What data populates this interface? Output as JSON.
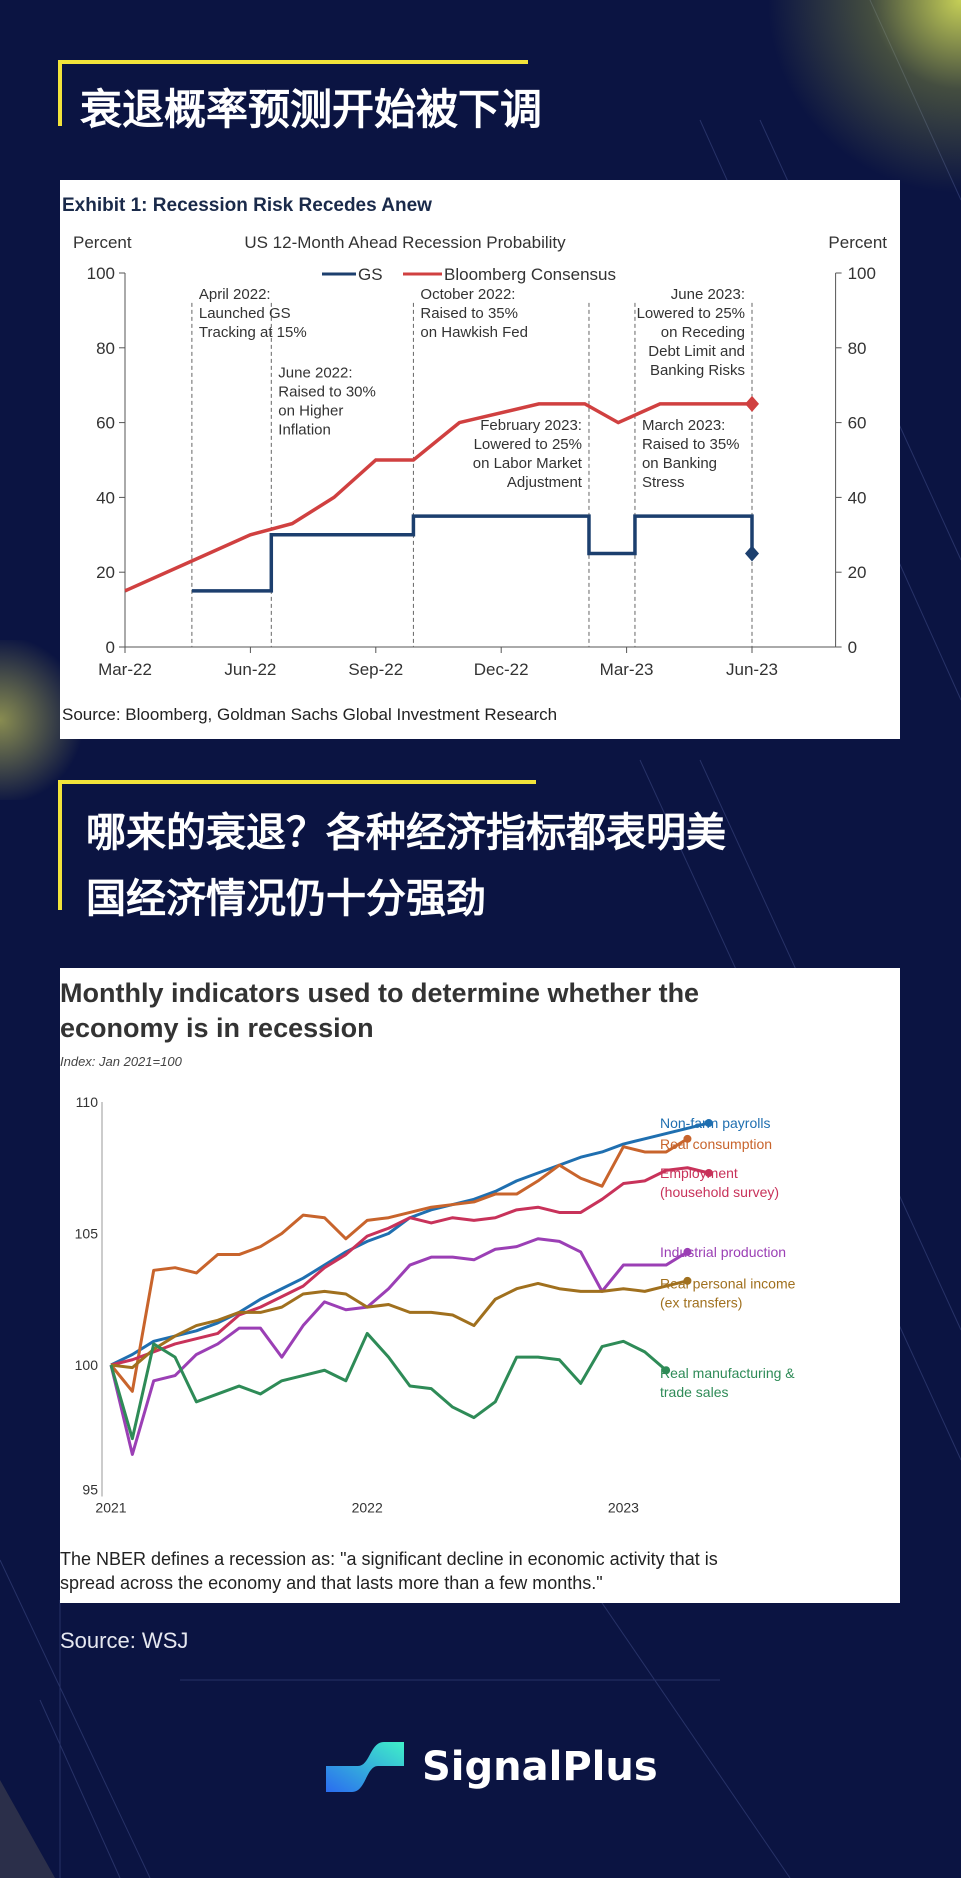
{
  "section1_title": "衰退概率预测开始被下调",
  "section2_title_line1": "哪来的衰退？各种经济指标都表明美",
  "section2_title_line2": "国经济情况仍十分强劲",
  "source2": "Source: WSJ",
  "brand": "SignalPlus",
  "colors": {
    "bg": "#0b1442",
    "accent": "#f2e33a",
    "gs": "#1c3f6e",
    "bloomberg": "#d04040"
  },
  "chart_data": [
    {
      "type": "line",
      "title": "Exhibit 1: Recession Risk Recedes Anew",
      "subtitle": "US 12-Month Ahead Recession Probability",
      "ylabel_left": "Percent",
      "ylabel_right": "Percent",
      "ylim": [
        0,
        100
      ],
      "yticks": [
        "0",
        "20",
        "40",
        "60",
        "80",
        "100"
      ],
      "x_unit": "months since Mar-22",
      "xlim": [
        0,
        17
      ],
      "xticks": [
        {
          "x": 0,
          "label": "Mar-22"
        },
        {
          "x": 3,
          "label": "Jun-22"
        },
        {
          "x": 6,
          "label": "Sep-22"
        },
        {
          "x": 9,
          "label": "Dec-22"
        },
        {
          "x": 12,
          "label": "Mar-23"
        },
        {
          "x": 15,
          "label": "Jun-23"
        }
      ],
      "source": "Source: Bloomberg, Goldman Sachs Global Investment Research",
      "series": [
        {
          "name": "GS",
          "color": "#1c3f6e",
          "points": [
            [
              1.6,
              15
            ],
            [
              3.5,
              15
            ],
            [
              3.5,
              30
            ],
            [
              6.9,
              30
            ],
            [
              6.9,
              35
            ],
            [
              11.1,
              35
            ],
            [
              11.1,
              25
            ],
            [
              12.2,
              25
            ],
            [
              12.2,
              35
            ],
            [
              15,
              35
            ],
            [
              15,
              25
            ]
          ],
          "marker_last": "diamond"
        },
        {
          "name": "Bloomberg Consensus",
          "color": "#d04040",
          "points": [
            [
              0,
              15
            ],
            [
              1.6,
              23
            ],
            [
              3,
              30
            ],
            [
              4,
              33
            ],
            [
              5,
              40
            ],
            [
              6,
              50
            ],
            [
              6.9,
              50
            ],
            [
              8,
              60
            ],
            [
              9.9,
              65
            ],
            [
              11,
              65
            ],
            [
              11.8,
              60
            ],
            [
              12.8,
              65
            ],
            [
              15,
              65
            ]
          ],
          "marker_last": "diamond"
        }
      ],
      "vlines": [
        1.6,
        3.5,
        6.9,
        11.1,
        12.2,
        15
      ],
      "annotations": [
        {
          "x": 1.6,
          "y": 93,
          "align": "start",
          "lines": [
            "April 2022:",
            "Launched GS",
            "Tracking at 15%"
          ]
        },
        {
          "x": 3.5,
          "y": 72,
          "align": "start",
          "lines": [
            "June 2022:",
            "Raised to 30%",
            "on Higher",
            "Inflation"
          ]
        },
        {
          "x": 6.9,
          "y": 93,
          "align": "start",
          "lines": [
            "October 2022:",
            "Raised to 35%",
            "on Hawkish Fed"
          ]
        },
        {
          "x": 11.1,
          "y": 58,
          "align": "end",
          "lines": [
            "February 2023:",
            "Lowered to 25%",
            "on Labor Market",
            "Adjustment"
          ]
        },
        {
          "x": 12.2,
          "y": 58,
          "align": "start",
          "lines": [
            "March 2023:",
            "Raised to 35%",
            "on Banking",
            "Stress"
          ]
        },
        {
          "x": 15,
          "y": 93,
          "align": "end",
          "lines": [
            "June 2023:",
            "Lowered to 25%",
            "on Receding",
            "Debt Limit and",
            "Banking Risks"
          ]
        }
      ]
    },
    {
      "type": "line",
      "title_line1": "Monthly indicators used to determine whether the",
      "title_line2": "economy is in recession",
      "subtitle": "Index: Jan 2021=100",
      "ylim": [
        95,
        110
      ],
      "yticks": [
        "95",
        "100",
        "105",
        "110"
      ],
      "x_unit": "months since Jan 2021",
      "xticks": [
        {
          "x": 0,
          "label": "2021"
        },
        {
          "x": 12,
          "label": "2022"
        },
        {
          "x": 24,
          "label": "2023"
        }
      ],
      "note_line1": "The NBER defines a recession as: \"a significant decline in economic activity that is",
      "note_line2": "spread across the economy and that lasts more than a few months.\"",
      "series": [
        {
          "name": "Non-farm payrolls",
          "label_lines": [
            "Non-farm payrolls"
          ],
          "label_y": 109.2,
          "color": "#1f6fb0",
          "values": [
            100,
            100.4,
            100.9,
            101.1,
            101.3,
            101.6,
            102.0,
            102.5,
            102.9,
            103.3,
            103.8,
            104.3,
            104.7,
            105.0,
            105.6,
            105.9,
            106.1,
            106.3,
            106.6,
            107.0,
            107.3,
            107.6,
            107.9,
            108.1,
            108.4,
            108.6,
            108.8,
            109.0,
            109.2
          ]
        },
        {
          "name": "Real consumption",
          "label_lines": [
            "Real consumption"
          ],
          "label_y": 108.4,
          "color": "#c8642c",
          "values": [
            100,
            99.0,
            103.6,
            103.7,
            103.5,
            104.2,
            104.2,
            104.5,
            105.0,
            105.7,
            105.6,
            104.8,
            105.5,
            105.6,
            105.8,
            106.0,
            106.1,
            106.2,
            106.5,
            106.5,
            107.0,
            107.6,
            107.1,
            106.8,
            108.3,
            108.1,
            108.1,
            108.6
          ]
        },
        {
          "name": "Employment (household survey)",
          "label_lines": [
            "Employment",
            "(household survey)"
          ],
          "label_y": 107.3,
          "color": "#c8325a",
          "values": [
            100,
            100.2,
            100.5,
            100.8,
            101.0,
            101.2,
            101.9,
            102.2,
            102.6,
            103.0,
            103.7,
            104.2,
            104.9,
            105.2,
            105.6,
            105.4,
            105.6,
            105.5,
            105.6,
            105.9,
            106.0,
            105.8,
            105.8,
            106.3,
            106.9,
            107.0,
            107.4,
            107.5,
            107.3
          ]
        },
        {
          "name": "Industrial production",
          "label_lines": [
            "Industrial production"
          ],
          "label_y": 104.3,
          "color": "#9b3fb5",
          "values": [
            100,
            96.6,
            99.4,
            99.6,
            100.4,
            100.8,
            101.4,
            101.4,
            100.3,
            101.5,
            102.4,
            102.1,
            102.2,
            102.9,
            103.8,
            104.1,
            104.1,
            104.0,
            104.4,
            104.5,
            104.8,
            104.7,
            104.3,
            102.8,
            103.8,
            103.8,
            103.8,
            104.3
          ]
        },
        {
          "name": "Real personal income (ex transfers)",
          "label_lines": [
            "Real personal income",
            "(ex transfers)"
          ],
          "label_y": 103.1,
          "color": "#a0701e",
          "values": [
            100,
            99.9,
            100.6,
            101.1,
            101.5,
            101.7,
            102.0,
            102.0,
            102.2,
            102.7,
            102.8,
            102.7,
            102.2,
            102.3,
            102.0,
            102.0,
            101.9,
            101.5,
            102.5,
            102.9,
            103.1,
            102.9,
            102.8,
            102.8,
            102.9,
            102.8,
            103.0,
            103.2
          ]
        },
        {
          "name": "Real manufacturing & trade sales",
          "label_lines": [
            "Real manufacturing &",
            "trade sales"
          ],
          "label_y": 99.7,
          "color": "#2e8b57",
          "values": [
            100,
            97.2,
            100.8,
            100.3,
            98.6,
            98.9,
            99.2,
            98.9,
            99.4,
            99.6,
            99.8,
            99.4,
            101.2,
            100.3,
            99.2,
            99.1,
            98.4,
            98.0,
            98.6,
            100.3,
            100.3,
            100.2,
            99.3,
            100.7,
            100.9,
            100.5,
            99.8
          ]
        }
      ]
    }
  ]
}
